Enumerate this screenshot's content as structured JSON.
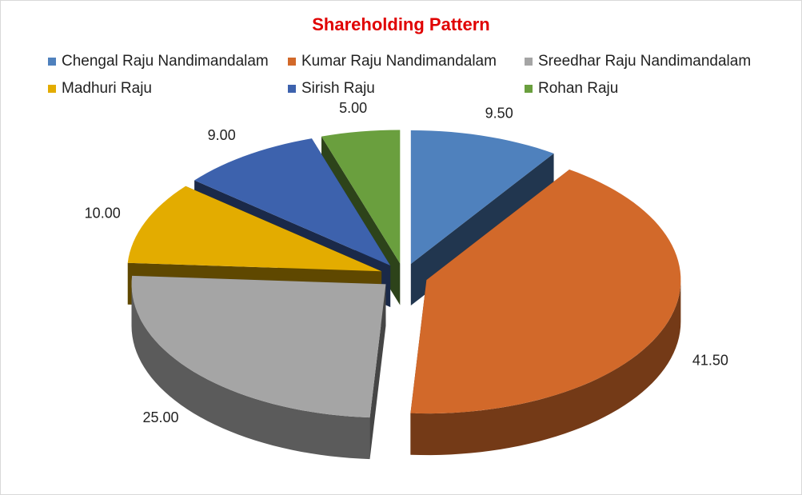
{
  "chart_data": {
    "type": "pie",
    "variant": "3d-exploded",
    "title": "Shareholding Pattern",
    "title_color": "#e00000",
    "legend_position": "top",
    "slices": [
      {
        "name": "Chengal Raju Nandimandalam",
        "value": 9.5,
        "label": "9.50",
        "color": "#4f81bd"
      },
      {
        "name": "Kumar Raju Nandimandalam",
        "value": 41.5,
        "label": "41.50",
        "color": "#d2692a"
      },
      {
        "name": "Sreedhar Raju Nandimandalam",
        "value": 25.0,
        "label": "25.00",
        "color": "#a5a5a5"
      },
      {
        "name": "Madhuri Raju",
        "value": 10.0,
        "label": "10.00",
        "color": "#e3ac00"
      },
      {
        "name": "Sirish Raju",
        "value": 9.0,
        "label": "9.00",
        "color": "#3d62ad"
      },
      {
        "name": "Rohan Raju",
        "value": 5.0,
        "label": "5.00",
        "color": "#6a9f3e"
      }
    ]
  }
}
